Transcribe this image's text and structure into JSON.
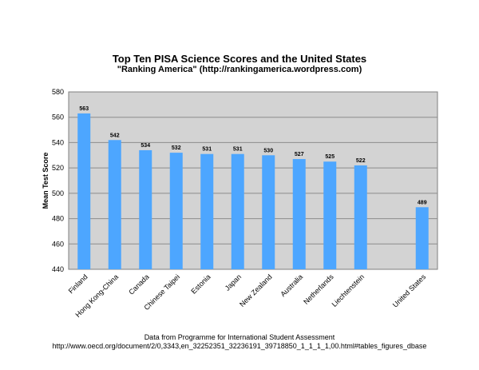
{
  "chart_data": {
    "type": "bar",
    "title": "Top Ten PISA Science Scores and the United States",
    "subtitle": "\"Ranking America\" (http://rankingamerica.wordpress.com)",
    "xlabel": "",
    "ylabel": "Mean Test Score",
    "ylim": [
      440,
      580
    ],
    "yticks": [
      440,
      460,
      480,
      500,
      520,
      540,
      560,
      580
    ],
    "grid": true,
    "legend": "none",
    "categories": [
      "Finland",
      "Hong Kong-China",
      "Canada",
      "Chinese Taipei",
      "Estonia",
      "Japan",
      "New Zealand",
      "Australia",
      "Netherlands",
      "Liechtenstein",
      "",
      "United States"
    ],
    "values": [
      563,
      542,
      534,
      532,
      531,
      531,
      530,
      527,
      525,
      522,
      null,
      489
    ],
    "colors": {
      "bar": "#4da6ff",
      "plot_background": "#d3d3d3",
      "gridline": "#8c8c8c"
    }
  },
  "footnote": {
    "line1": "Data from Programme for International Student Assessment",
    "line2": "http://www.oecd.org/document/2/0,3343,en_32252351_32236191_39718850_1_1_1_1,00.html#tables_figures_dbase"
  }
}
